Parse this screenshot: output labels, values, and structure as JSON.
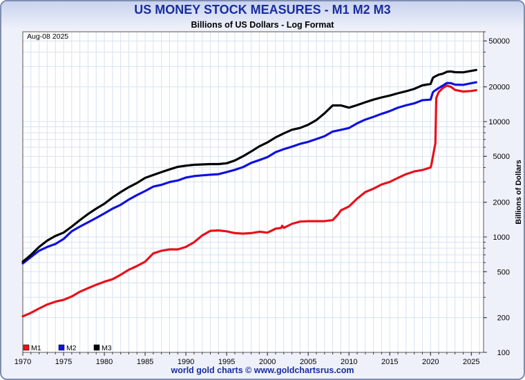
{
  "header": {
    "title": "US MONEY STOCK MEASURES - M1 M2 M3",
    "subtitle": "Billions of US Dollars - Log Format"
  },
  "footer": {
    "credit": "world gold charts © www.goldchartsrus.com"
  },
  "colors": {
    "title": "#1a2d9e",
    "m1": "#e8101a",
    "m2": "#1010e0",
    "m3": "#000000",
    "grid": "#d6e2f0"
  },
  "chart_data": {
    "type": "line",
    "title": "US MONEY STOCK MEASURES - M1 M2 M3",
    "subtitle": "Billions of US Dollars - Log Format",
    "date_label": "Aug-08  2025",
    "xlabel": "",
    "ylabel": "Billions of Dollars",
    "yscale": "log",
    "xlim": [
      1970,
      2026.5
    ],
    "ylim": [
      100,
      60000
    ],
    "x_ticks": [
      "1970",
      "1975",
      "1980",
      "1985",
      "1990",
      "1995",
      "2000",
      "2005",
      "2010",
      "2015",
      "2020",
      "2025"
    ],
    "y_ticks": [
      "100",
      "200",
      "500",
      "1000",
      "2000",
      "5000",
      "10000",
      "20000",
      "50000"
    ],
    "legend_position": "bottom-left",
    "grid": true,
    "series": [
      {
        "name": "M1",
        "color": "#e8101a",
        "x": [
          1970,
          1971,
          1972,
          1973,
          1974,
          1975,
          1976,
          1977,
          1978,
          1979,
          1980,
          1981,
          1982,
          1983,
          1984,
          1985,
          1986,
          1987,
          1988,
          1989,
          1990,
          1991,
          1992,
          1993,
          1994,
          1995,
          1996,
          1997,
          1998,
          1999,
          2000,
          2001,
          2001.7,
          2001.8,
          2002,
          2003,
          2004,
          2005,
          2006,
          2007,
          2008,
          2008.7,
          2009,
          2010,
          2011,
          2012,
          2013,
          2014,
          2015,
          2016,
          2017,
          2018,
          2019,
          2020,
          2020.1,
          2020.4,
          2020.6,
          2020.7,
          2021,
          2021.5,
          2022,
          2022.5,
          2023,
          2024,
          2025,
          2025.6
        ],
        "y": [
          205,
          220,
          240,
          260,
          275,
          285,
          305,
          335,
          360,
          385,
          410,
          430,
          470,
          520,
          560,
          610,
          720,
          760,
          780,
          780,
          820,
          900,
          1030,
          1130,
          1140,
          1120,
          1080,
          1070,
          1080,
          1110,
          1090,
          1180,
          1200,
          1250,
          1200,
          1300,
          1360,
          1370,
          1370,
          1370,
          1400,
          1580,
          1700,
          1840,
          2150,
          2450,
          2620,
          2850,
          3000,
          3250,
          3500,
          3700,
          3800,
          4000,
          4200,
          5500,
          6500,
          16000,
          18000,
          19500,
          20500,
          20000,
          18800,
          18200,
          18400,
          18700
        ]
      },
      {
        "name": "M2",
        "color": "#1010e0",
        "x": [
          1970,
          1971,
          1972,
          1973,
          1974,
          1975,
          1976,
          1977,
          1978,
          1979,
          1980,
          1981,
          1982,
          1983,
          1984,
          1985,
          1986,
          1987,
          1988,
          1989,
          1990,
          1991,
          1992,
          1993,
          1994,
          1995,
          1996,
          1997,
          1998,
          1999,
          2000,
          2001,
          2002,
          2003,
          2004,
          2005,
          2006,
          2007,
          2008,
          2009,
          2010,
          2011,
          2012,
          2013,
          2014,
          2015,
          2016,
          2017,
          2018,
          2019,
          2020,
          2020.3,
          2020.5,
          2021,
          2021.5,
          2022,
          2022.5,
          2023,
          2024,
          2025,
          2025.6
        ],
        "y": [
          590,
          670,
          760,
          820,
          870,
          960,
          1120,
          1230,
          1340,
          1460,
          1600,
          1760,
          1900,
          2110,
          2310,
          2500,
          2730,
          2830,
          2990,
          3090,
          3270,
          3370,
          3420,
          3460,
          3500,
          3650,
          3820,
          4030,
          4380,
          4640,
          4920,
          5430,
          5770,
          6060,
          6410,
          6670,
          7060,
          7470,
          8190,
          8480,
          8790,
          9650,
          10400,
          10990,
          11670,
          12330,
          13190,
          13840,
          14390,
          15330,
          15500,
          18000,
          18500,
          19500,
          20500,
          21600,
          21500,
          20900,
          20800,
          21500,
          21900
        ]
      },
      {
        "name": "M3",
        "color": "#000000",
        "x": [
          1970,
          1971,
          1972,
          1973,
          1974,
          1975,
          1976,
          1977,
          1978,
          1979,
          1980,
          1981,
          1982,
          1983,
          1984,
          1985,
          1986,
          1987,
          1988,
          1989,
          1990,
          1991,
          1992,
          1993,
          1994,
          1995,
          1996,
          1997,
          1998,
          1999,
          2000,
          2001,
          2002,
          2003,
          2004,
          2005,
          2006,
          2007,
          2008,
          2009,
          2010,
          2011,
          2012,
          2013,
          2014,
          2015,
          2016,
          2017,
          2018,
          2019,
          2020,
          2020.3,
          2020.5,
          2021,
          2021.5,
          2022,
          2022.5,
          2023,
          2024,
          2025,
          2025.6
        ],
        "y": [
          610,
          700,
          820,
          930,
          1020,
          1090,
          1230,
          1400,
          1580,
          1760,
          1940,
          2200,
          2450,
          2700,
          2940,
          3250,
          3450,
          3650,
          3850,
          4050,
          4150,
          4220,
          4250,
          4280,
          4280,
          4350,
          4600,
          5000,
          5500,
          6100,
          6600,
          7300,
          7900,
          8500,
          8800,
          9400,
          10300,
          11800,
          13800,
          13800,
          13200,
          13900,
          14700,
          15500,
          16200,
          16800,
          17600,
          18300,
          19200,
          20600,
          21200,
          24000,
          24500,
          25500,
          26000,
          27000,
          27200,
          26800,
          26700,
          27500,
          28000
        ]
      }
    ]
  }
}
